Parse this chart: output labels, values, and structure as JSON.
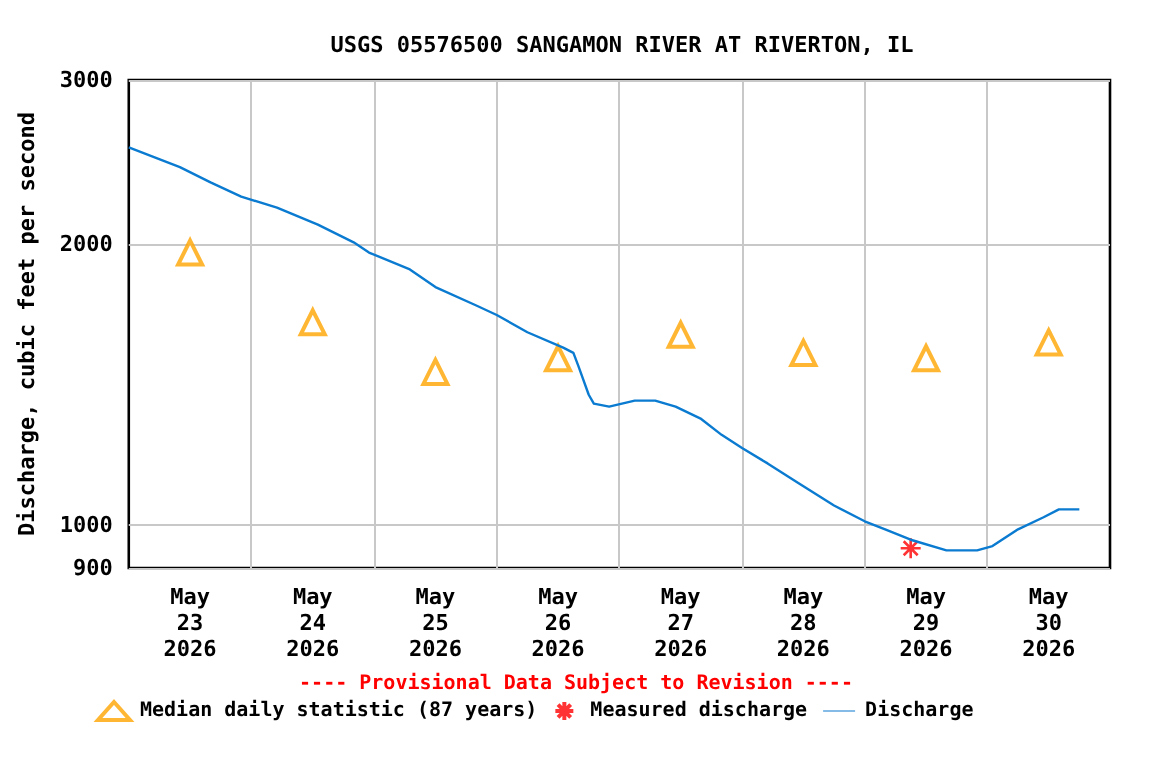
{
  "chart_data": {
    "type": "line",
    "title": "USGS 05576500 SANGAMON RIVER AT RIVERTON, IL",
    "ylabel": "Discharge, cubic feet per second",
    "annotations": [
      "---- Provisional Data Subject to Revision ----"
    ],
    "log": "y",
    "grid": true,
    "legend": "bottom",
    "xlim": [
      "2026-05-23T00:00",
      "2026-05-31T00:00"
    ],
    "xticks": [
      {
        "value": "2026-05-23T12:00",
        "label": "May\n23\n2026"
      },
      {
        "value": "2026-05-24T00:00",
        "label": null
      },
      {
        "value": "2026-05-24T12:00",
        "label": "May\n24\n2026"
      },
      {
        "value": "2026-05-25T00:00",
        "label": null
      },
      {
        "value": "2026-05-25T12:00",
        "label": "May\n25\n2026"
      },
      {
        "value": "2026-05-26T00:00",
        "label": null
      },
      {
        "value": "2026-05-26T12:00",
        "label": "May\n26\n2026"
      },
      {
        "value": "2026-05-27T00:00",
        "label": null
      },
      {
        "value": "2026-05-27T12:00",
        "label": "May\n27\n2026"
      },
      {
        "value": "2026-05-28T00:00",
        "label": null
      },
      {
        "value": "2026-05-28T12:00",
        "label": "May\n28\n2026"
      },
      {
        "value": "2026-05-29T00:00",
        "label": null
      },
      {
        "value": "2026-05-29T12:00",
        "label": "May\n29\n2026"
      },
      {
        "value": "2026-05-30T00:00",
        "label": null
      },
      {
        "value": "2026-05-30T12:00",
        "label": "May\n30\n2026"
      }
    ],
    "ylim": [
      900,
      3000
    ],
    "yticks": [
      900,
      1000,
      2000,
      3000
    ],
    "series": [
      {
        "name": "Median daily statistic (87 years)",
        "type": "scatter",
        "marker": "triangle",
        "color": "#ffa500",
        "x": [
          "2026-05-23T12:00",
          "2026-05-24T12:00",
          "2026-05-25T12:00",
          "2026-05-26T12:00",
          "2026-05-27T12:00",
          "2026-05-28T12:00",
          "2026-05-29T12:00",
          "2026-05-30T12:00"
        ],
        "values": [
          1960,
          1650,
          1460,
          1510,
          1600,
          1530,
          1510,
          1570
        ]
      },
      {
        "name": "Measured discharge",
        "type": "scatter",
        "marker": "cross",
        "color": "#ff0000",
        "x": [
          "2026-05-29T09:00"
        ],
        "values": [
          945
        ]
      },
      {
        "name": "Discharge",
        "marker": "none",
        "color": "#0a7bd0",
        "x": [
          "2026-05-23T00:00",
          "2026-05-23T10:00",
          "2026-05-23T16:00",
          "2026-05-23T22:00",
          "2026-05-24T05:00",
          "2026-05-24T13:00",
          "2026-05-24T20:00",
          "2026-05-24T23:00",
          "2026-05-25T07:00",
          "2026-05-25T12:00",
          "2026-05-25T20:00",
          "2026-05-26T00:00",
          "2026-05-26T06:00",
          "2026-05-26T13:00",
          "2026-05-26T15:00",
          "2026-05-26T16:00",
          "2026-05-26T18:00",
          "2026-05-26T19:00",
          "2026-05-26T22:00",
          "2026-05-27T03:00",
          "2026-05-27T07:00",
          "2026-05-27T11:00",
          "2026-05-27T16:00",
          "2026-05-27T20:00",
          "2026-05-28T00:00",
          "2026-05-28T05:00",
          "2026-05-28T11:00",
          "2026-05-28T18:00",
          "2026-05-29T00:00",
          "2026-05-29T04:00",
          "2026-05-29T09:00",
          "2026-05-29T16:00",
          "2026-05-29T22:00",
          "2026-05-30T01:00",
          "2026-05-30T06:00",
          "2026-05-30T11:00",
          "2026-05-30T14:00",
          "2026-05-30T18:00"
        ],
        "values": [
          2540,
          2420,
          2330,
          2250,
          2190,
          2100,
          2010,
          1960,
          1880,
          1800,
          1720,
          1680,
          1610,
          1550,
          1530,
          1480,
          1380,
          1350,
          1340,
          1360,
          1360,
          1340,
          1300,
          1250,
          1210,
          1165,
          1110,
          1050,
          1010,
          990,
          965,
          940,
          940,
          950,
          990,
          1020,
          1040,
          1040
        ]
      }
    ]
  }
}
